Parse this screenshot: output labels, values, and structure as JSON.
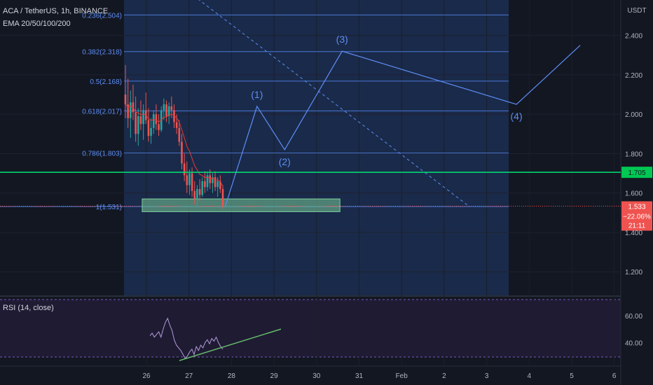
{
  "header": {
    "symbol_line": "ACA / TetherUS, 1h, BINANCE",
    "indicator_line": "EMA 20/50/100/200"
  },
  "axis": {
    "currency": "USDT",
    "price_ticks": [
      "2.400",
      "2.200",
      "2.000",
      "1.800",
      "1.600",
      "1.400",
      "1.200"
    ],
    "time_ticks": [
      "26",
      "27",
      "28",
      "29",
      "30",
      "31",
      "Feb",
      "2",
      "3",
      "4",
      "5",
      "6"
    ]
  },
  "rsi": {
    "title": "RSI (14, close)",
    "ticks": [
      "60.00",
      "40.00"
    ]
  },
  "chart_data": {
    "type": "candlestick",
    "ylim": [
      1.08,
      2.58
    ],
    "fib_levels": [
      {
        "label": "0.236(2.504)",
        "value": 2.504
      },
      {
        "label": "0.382(2.318)",
        "value": 2.318
      },
      {
        "label": "0.5(2.168)",
        "value": 2.168
      },
      {
        "label": "0.618(2.017)",
        "value": 2.017
      },
      {
        "label": "0.786(1.803)",
        "value": 1.803
      },
      {
        "label": "1(1.531)",
        "value": 1.531
      }
    ],
    "support_line": {
      "value": 1.705,
      "label": "1.705"
    },
    "current_price": {
      "value": 1.533,
      "price_label": "1.533",
      "change_label": "−22.06%",
      "countdown_label": "21:11"
    },
    "support_zone": {
      "from_day": 25.9,
      "to_day": 30.55,
      "low": 1.505,
      "high": 1.57
    },
    "waves": [
      {
        "label": "(1)",
        "day": 28.6,
        "price": 2.04
      },
      {
        "label": "(2)",
        "day": 29.25,
        "price": 1.82
      },
      {
        "label": "(3)",
        "day": 30.6,
        "price": 2.32
      },
      {
        "label": "(4)",
        "day": 34.7,
        "price": 2.05
      }
    ],
    "wave_path": [
      [
        27.85,
        1.53
      ],
      [
        28.6,
        2.04
      ],
      [
        29.25,
        1.82
      ],
      [
        30.6,
        2.32
      ],
      [
        34.7,
        2.05
      ],
      [
        36.2,
        2.35
      ]
    ],
    "candles": [
      {
        "o": 2.1,
        "h": 2.25,
        "l": 1.98,
        "c": 2.05
      },
      {
        "o": 2.05,
        "h": 2.18,
        "l": 1.93,
        "c": 1.98
      },
      {
        "o": 1.98,
        "h": 2.12,
        "l": 1.88,
        "c": 2.06
      },
      {
        "o": 2.06,
        "h": 2.15,
        "l": 1.97,
        "c": 2.01
      },
      {
        "o": 2.01,
        "h": 2.09,
        "l": 1.86,
        "c": 1.9
      },
      {
        "o": 1.9,
        "h": 2.03,
        "l": 1.84,
        "c": 1.99
      },
      {
        "o": 1.99,
        "h": 2.07,
        "l": 1.92,
        "c": 1.95
      },
      {
        "o": 1.95,
        "h": 2.05,
        "l": 1.87,
        "c": 2.02
      },
      {
        "o": 2.02,
        "h": 2.11,
        "l": 1.95,
        "c": 1.97
      },
      {
        "o": 1.97,
        "h": 2.03,
        "l": 1.86,
        "c": 1.89
      },
      {
        "o": 1.89,
        "h": 1.98,
        "l": 1.85,
        "c": 1.93
      },
      {
        "o": 1.93,
        "h": 2.02,
        "l": 1.9,
        "c": 2.0
      },
      {
        "o": 2.0,
        "h": 2.05,
        "l": 1.92,
        "c": 1.95
      },
      {
        "o": 1.95,
        "h": 2.0,
        "l": 1.89,
        "c": 1.92
      },
      {
        "o": 1.92,
        "h": 2.04,
        "l": 1.91,
        "c": 2.02
      },
      {
        "o": 2.02,
        "h": 2.08,
        "l": 1.97,
        "c": 2.05
      },
      {
        "o": 2.05,
        "h": 2.07,
        "l": 1.96,
        "c": 1.99
      },
      {
        "o": 1.99,
        "h": 2.06,
        "l": 1.95,
        "c": 2.04
      },
      {
        "o": 2.04,
        "h": 2.09,
        "l": 1.98,
        "c": 2.02
      },
      {
        "o": 2.02,
        "h": 2.05,
        "l": 1.93,
        "c": 1.96
      },
      {
        "o": 1.96,
        "h": 2.0,
        "l": 1.9,
        "c": 1.93
      },
      {
        "o": 1.93,
        "h": 1.97,
        "l": 1.84,
        "c": 1.86
      },
      {
        "o": 1.86,
        "h": 1.9,
        "l": 1.72,
        "c": 1.75
      },
      {
        "o": 1.75,
        "h": 1.8,
        "l": 1.66,
        "c": 1.69
      },
      {
        "o": 1.69,
        "h": 1.76,
        "l": 1.6,
        "c": 1.64
      },
      {
        "o": 1.64,
        "h": 1.72,
        "l": 1.59,
        "c": 1.7
      },
      {
        "o": 1.7,
        "h": 1.73,
        "l": 1.58,
        "c": 1.61
      },
      {
        "o": 1.61,
        "h": 1.66,
        "l": 1.54,
        "c": 1.57
      },
      {
        "o": 1.57,
        "h": 1.64,
        "l": 1.53,
        "c": 1.62
      },
      {
        "o": 1.62,
        "h": 1.67,
        "l": 1.56,
        "c": 1.59
      },
      {
        "o": 1.59,
        "h": 1.68,
        "l": 1.58,
        "c": 1.66
      },
      {
        "o": 1.66,
        "h": 1.71,
        "l": 1.6,
        "c": 1.63
      },
      {
        "o": 1.63,
        "h": 1.71,
        "l": 1.61,
        "c": 1.69
      },
      {
        "o": 1.69,
        "h": 1.72,
        "l": 1.62,
        "c": 1.65
      },
      {
        "o": 1.65,
        "h": 1.7,
        "l": 1.6,
        "c": 1.68
      },
      {
        "o": 1.68,
        "h": 1.71,
        "l": 1.61,
        "c": 1.63
      },
      {
        "o": 1.63,
        "h": 1.68,
        "l": 1.58,
        "c": 1.66
      },
      {
        "o": 1.66,
        "h": 1.69,
        "l": 1.6,
        "c": 1.62
      },
      {
        "o": 1.62,
        "h": 1.64,
        "l": 1.52,
        "c": 1.533
      }
    ],
    "rsi_ylim": [
      25,
      72
    ],
    "rsi_values": [
      45,
      47,
      44,
      46,
      48,
      44,
      50,
      55,
      58,
      53,
      49,
      42,
      38,
      36,
      34,
      31,
      28,
      30,
      33,
      35,
      31,
      37,
      34,
      38,
      36,
      40,
      42,
      39,
      43,
      41,
      44,
      40,
      37,
      35
    ]
  }
}
